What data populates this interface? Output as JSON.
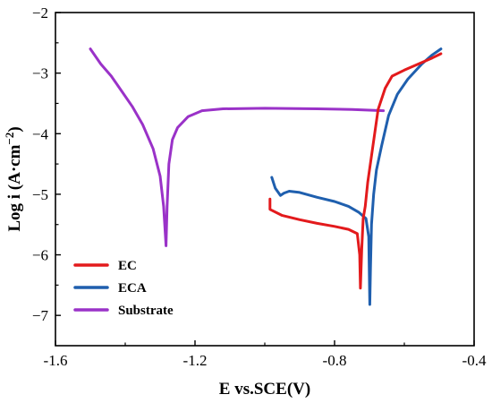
{
  "chart_data": {
    "type": "line",
    "title": "",
    "xlabel": "E vs.SCE(V)",
    "ylabel": "Log i (A·cm⁻²)",
    "ylabel_main": "Log i (A·cm",
    "ylabel_exp": "−2",
    "ylabel_close": ")",
    "xlim": [
      -1.6,
      -0.4
    ],
    "ylim": [
      -7.5,
      -2.0
    ],
    "xticks": [
      -1.6,
      -1.2,
      -0.8,
      -0.4
    ],
    "xtick_labels": [
      "-1.6",
      "-1.2",
      "-0.8",
      "-0.4"
    ],
    "yticks": [
      -7,
      -6,
      -5,
      -4,
      -3,
      -2
    ],
    "ytick_labels": [
      "−7",
      "−6",
      "−5",
      "−4",
      "−3",
      "−2"
    ],
    "grid": false,
    "legend_position": "bottom-left",
    "series": [
      {
        "name": "EC",
        "color": "#e31a1c",
        "points": [
          [
            -0.985,
            -5.08
          ],
          [
            -0.985,
            -5.25
          ],
          [
            -0.95,
            -5.35
          ],
          [
            -0.9,
            -5.42
          ],
          [
            -0.85,
            -5.48
          ],
          [
            -0.8,
            -5.53
          ],
          [
            -0.76,
            -5.58
          ],
          [
            -0.735,
            -5.65
          ],
          [
            -0.728,
            -6.0
          ],
          [
            -0.726,
            -6.55
          ],
          [
            -0.722,
            -5.9
          ],
          [
            -0.718,
            -5.4
          ],
          [
            -0.712,
            -5.2
          ],
          [
            -0.705,
            -4.8
          ],
          [
            -0.69,
            -4.2
          ],
          [
            -0.675,
            -3.6
          ],
          [
            -0.655,
            -3.25
          ],
          [
            -0.635,
            -3.05
          ],
          [
            -0.6,
            -2.95
          ],
          [
            -0.56,
            -2.85
          ],
          [
            -0.52,
            -2.75
          ],
          [
            -0.495,
            -2.68
          ]
        ]
      },
      {
        "name": "ECA",
        "color": "#1f5fae",
        "points": [
          [
            -0.98,
            -4.72
          ],
          [
            -0.97,
            -4.9
          ],
          [
            -0.955,
            -5.02
          ],
          [
            -0.945,
            -4.98
          ],
          [
            -0.93,
            -4.95
          ],
          [
            -0.9,
            -4.97
          ],
          [
            -0.85,
            -5.05
          ],
          [
            -0.8,
            -5.12
          ],
          [
            -0.76,
            -5.2
          ],
          [
            -0.73,
            -5.3
          ],
          [
            -0.71,
            -5.4
          ],
          [
            -0.702,
            -5.7
          ],
          [
            -0.699,
            -6.82
          ],
          [
            -0.697,
            -6.2
          ],
          [
            -0.694,
            -5.5
          ],
          [
            -0.688,
            -5.0
          ],
          [
            -0.68,
            -4.6
          ],
          [
            -0.665,
            -4.2
          ],
          [
            -0.645,
            -3.7
          ],
          [
            -0.62,
            -3.35
          ],
          [
            -0.59,
            -3.1
          ],
          [
            -0.55,
            -2.85
          ],
          [
            -0.52,
            -2.7
          ],
          [
            -0.495,
            -2.6
          ]
        ]
      },
      {
        "name": "Substrate",
        "color": "#9a32c8",
        "points": [
          [
            -1.5,
            -2.6
          ],
          [
            -1.47,
            -2.85
          ],
          [
            -1.44,
            -3.05
          ],
          [
            -1.41,
            -3.3
          ],
          [
            -1.38,
            -3.55
          ],
          [
            -1.35,
            -3.85
          ],
          [
            -1.32,
            -4.25
          ],
          [
            -1.3,
            -4.7
          ],
          [
            -1.29,
            -5.2
          ],
          [
            -1.283,
            -5.85
          ],
          [
            -1.28,
            -5.2
          ],
          [
            -1.275,
            -4.5
          ],
          [
            -1.265,
            -4.1
          ],
          [
            -1.25,
            -3.9
          ],
          [
            -1.22,
            -3.72
          ],
          [
            -1.18,
            -3.62
          ],
          [
            -1.12,
            -3.59
          ],
          [
            -1.0,
            -3.58
          ],
          [
            -0.85,
            -3.59
          ],
          [
            -0.75,
            -3.6
          ],
          [
            -0.66,
            -3.62
          ]
        ]
      }
    ]
  }
}
